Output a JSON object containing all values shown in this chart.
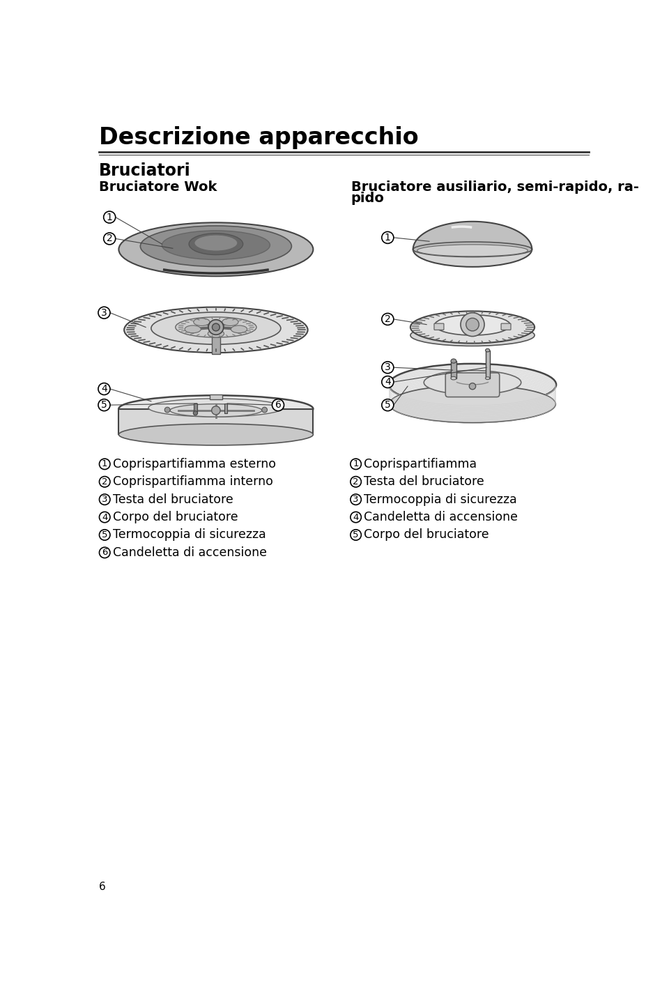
{
  "title": "Descrizione apparecchio",
  "subtitle": "Bruciatori",
  "left_burner_title": "Bruciatore Wok",
  "right_burner_title_line1": "Bruciatore ausiliario, semi-rapido, ra-",
  "right_burner_title_line2": "pido",
  "bg_color": "#ffffff",
  "text_color": "#000000",
  "left_labels": [
    {
      "num": "1",
      "text": "Coprispartifiamma esterno"
    },
    {
      "num": "2",
      "text": "Coprispartifiamma interno"
    },
    {
      "num": "3",
      "text": "Testa del bruciatore"
    },
    {
      "num": "4",
      "text": "Corpo del bruciatore"
    },
    {
      "num": "5",
      "text": "Termocoppia di sicurezza"
    },
    {
      "num": "6",
      "text": "Candeletta di accensione"
    }
  ],
  "right_labels": [
    {
      "num": "1",
      "text": "Coprispartifiamma"
    },
    {
      "num": "2",
      "text": "Testa del bruciatore"
    },
    {
      "num": "3",
      "text": "Termocoppia di sicurezza"
    },
    {
      "num": "4",
      "text": "Candeletta di accensione"
    },
    {
      "num": "5",
      "text": "Corpo del bruciatore"
    }
  ],
  "footer_text": "6",
  "title_fontsize": 24,
  "subtitle_fontsize": 17,
  "label_fontsize": 12.5,
  "burner_title_fontsize": 14
}
